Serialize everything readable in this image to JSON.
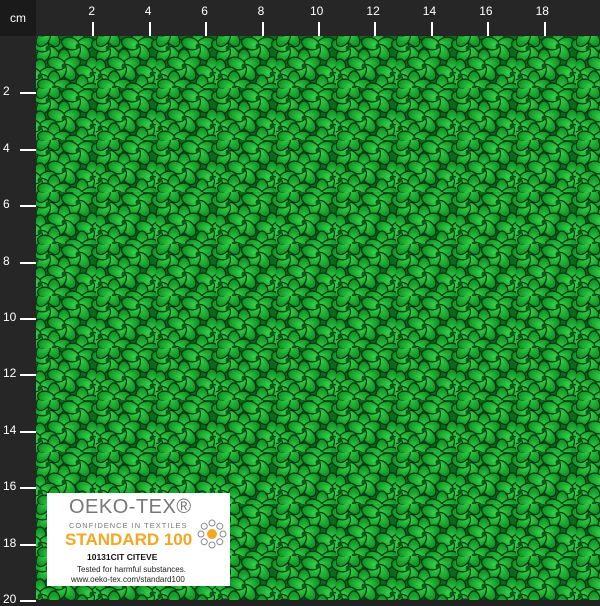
{
  "ruler": {
    "unit": "cm",
    "top_labels": [
      "2",
      "4",
      "6",
      "8",
      "10",
      "12",
      "14",
      "16",
      "18"
    ],
    "left_labels": [
      "2",
      "4",
      "6",
      "8",
      "10",
      "12",
      "14",
      "16",
      "18",
      "20"
    ]
  },
  "fabric": {
    "motif": "flower-pattern",
    "base_color": "#0f7a22",
    "light_color": "#2fd045",
    "dark_color": "#063d12"
  },
  "certification": {
    "brand": "OEKO-TEX®",
    "tagline": "CONFIDENCE IN TEXTILES",
    "standard": "STANDARD 100",
    "code": "10131CIT CITEVE",
    "tested": "Tested for harmful substances.",
    "url": "www.oeko-tex.com/standard100",
    "accent": "#f5a623"
  }
}
